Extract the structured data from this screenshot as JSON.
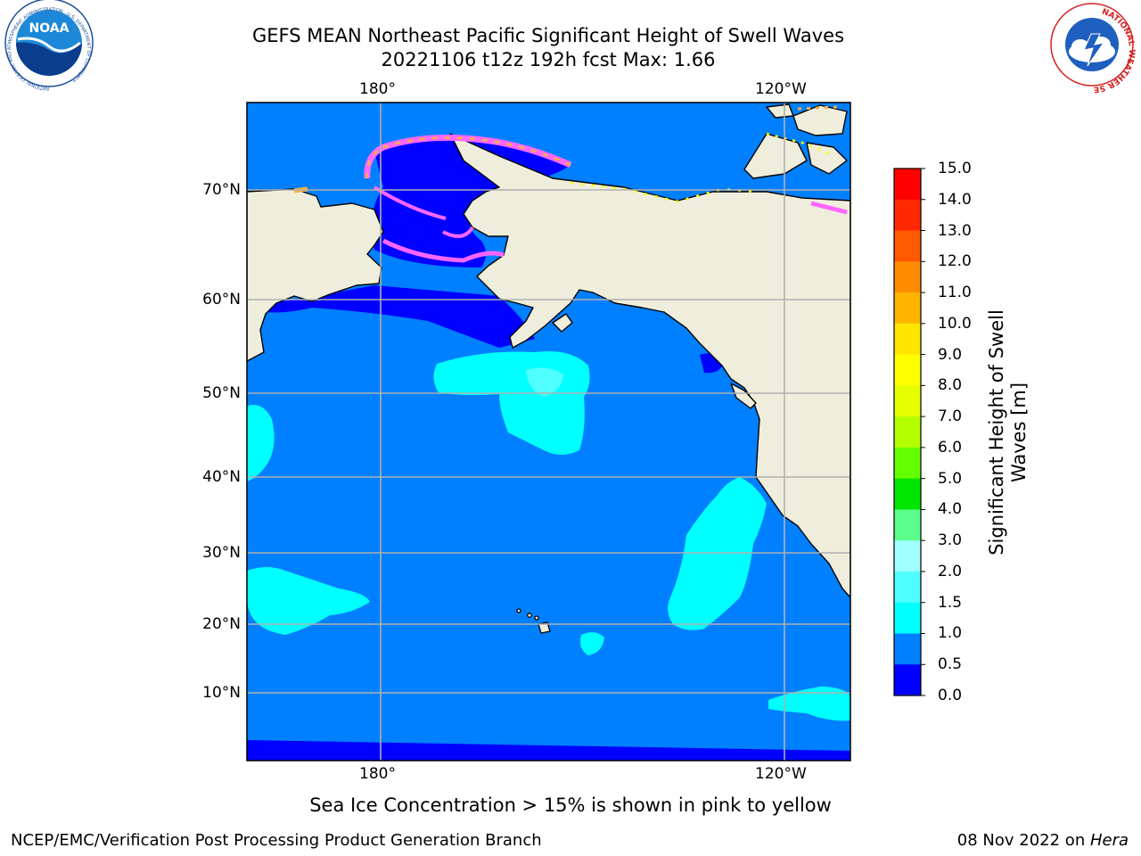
{
  "title": {
    "line1": "GEFS MEAN Northeast Pacific Significant Height of Swell Waves",
    "line2": "20221106 t12z 192h fcst   Max: 1.66"
  },
  "logos": {
    "left": {
      "name": "noaa-logo",
      "text": "NOAA",
      "ring_text": "NATIONAL OCEANIC AND ATMOSPHERIC ADMINISTRATION · U.S. DEPARTMENT OF COMMERCE"
    },
    "right": {
      "name": "nws-logo",
      "ring_text": "NATIONAL WEATHER SERVICE"
    }
  },
  "map": {
    "lon_ticks_top": [
      "180°",
      "120°W"
    ],
    "lon_ticks_bottom": [
      "180°",
      "120°W"
    ],
    "lat_ticks": [
      "70°N",
      "60°N",
      "50°N",
      "40°N",
      "30°N",
      "20°N",
      "10°N"
    ],
    "colors": {
      "land": "#efeedc",
      "ocean_base": "#0080ff",
      "ocean_low": "#0000ff",
      "ocean_mid": "#00ffff",
      "gridline": "#b0b0b0",
      "coast": "#000000",
      "ice_pink": "#ff66ff",
      "ice_orange": "#ffb040",
      "ice_yellow": "#ffff00"
    }
  },
  "colorbar": {
    "label_line1": "Significant Height of Swell",
    "label_line2": "Waves [m]",
    "ticks": [
      "15.0",
      "14.0",
      "13.0",
      "12.0",
      "11.0",
      "10.0",
      "9.0",
      "8.0",
      "7.0",
      "6.0",
      "5.0",
      "4.0",
      "3.0",
      "2.0",
      "1.5",
      "1.0",
      "0.5",
      "0.0"
    ],
    "levels": [
      {
        "range": "14.0-15.0",
        "color": "#ff0000"
      },
      {
        "range": "13.0-14.0",
        "color": "#ff2800"
      },
      {
        "range": "12.0-13.0",
        "color": "#ff5a00"
      },
      {
        "range": "11.0-12.0",
        "color": "#ff8c00"
      },
      {
        "range": "10.0-11.0",
        "color": "#ffb400"
      },
      {
        "range": "9.0-10.0",
        "color": "#ffe600"
      },
      {
        "range": "8.0-9.0",
        "color": "#ffff00"
      },
      {
        "range": "7.0-8.0",
        "color": "#e6ff00"
      },
      {
        "range": "6.0-7.0",
        "color": "#b4ff00"
      },
      {
        "range": "5.0-6.0",
        "color": "#64ff00"
      },
      {
        "range": "4.0-5.0",
        "color": "#00e600"
      },
      {
        "range": "3.0-4.0",
        "color": "#5aff8c"
      },
      {
        "range": "2.0-3.0",
        "color": "#a0ffff"
      },
      {
        "range": "1.5-2.0",
        "color": "#50ffff"
      },
      {
        "range": "1.0-1.5",
        "color": "#00ffff"
      },
      {
        "range": "0.5-1.0",
        "color": "#0080ff"
      },
      {
        "range": "0.0-0.5",
        "color": "#0000ff"
      }
    ]
  },
  "caption": "Sea Ice Concentration > 15% is shown in pink to yellow",
  "footer": {
    "left": "NCEP/EMC/Verification Post Processing Product Generation Branch",
    "right_prefix": "08 Nov 2022 on ",
    "right_host": "Hera"
  }
}
